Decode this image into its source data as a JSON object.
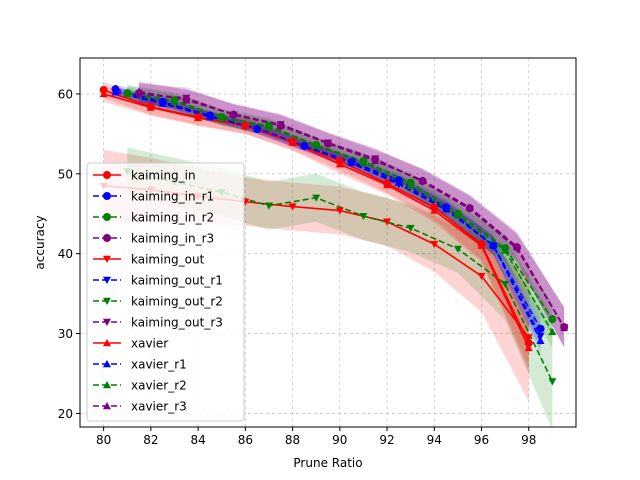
{
  "chart_data": {
    "type": "line",
    "title": "",
    "xlabel": "Prune Ratio",
    "ylabel": "accuracy",
    "xlim": [
      79,
      100
    ],
    "ylim": [
      18.3,
      64.5
    ],
    "xticks": [
      80,
      82,
      84,
      86,
      88,
      90,
      92,
      94,
      96,
      98
    ],
    "yticks": [
      20,
      30,
      40,
      50,
      60
    ],
    "grid": true,
    "legend": "left",
    "series": [
      {
        "name": "kaiming_in",
        "color": "#ff0000",
        "dash": "solid",
        "marker": "circle",
        "x": [
          80,
          82,
          84,
          86,
          88,
          90,
          92,
          94,
          96,
          98
        ],
        "y": [
          60.5,
          58.4,
          57.1,
          56.0,
          54.0,
          51.6,
          48.8,
          45.8,
          41.2,
          28.8
        ],
        "band": [
          1.0,
          1.0,
          1.0,
          1.0,
          1.0,
          1.2,
          1.2,
          1.5,
          2.0,
          3.0
        ]
      },
      {
        "name": "kaiming_in_r1",
        "color": "#0000ff",
        "dash": "dashed",
        "marker": "circle",
        "x": [
          80.5,
          82.5,
          84.5,
          86.5,
          88.5,
          90.5,
          92.5,
          94.5,
          96.5,
          98.5
        ],
        "y": [
          60.6,
          59.0,
          57.3,
          55.6,
          53.5,
          51.5,
          49.2,
          45.8,
          41.0,
          30.6
        ],
        "band": [
          0.6,
          0.6,
          0.6,
          0.6,
          0.6,
          0.7,
          0.8,
          1.0,
          1.2,
          1.5
        ]
      },
      {
        "name": "kaiming_in_r2",
        "color": "#008000",
        "dash": "dashed",
        "marker": "circle",
        "x": [
          81,
          83,
          85,
          87,
          89,
          91,
          93,
          95,
          97,
          99
        ],
        "y": [
          60.1,
          59.2,
          57.1,
          56.0,
          53.6,
          51.6,
          48.9,
          45.0,
          40.7,
          31.8
        ],
        "band": [
          1.0,
          1.0,
          1.0,
          1.0,
          1.0,
          1.0,
          1.2,
          1.4,
          1.6,
          2.0
        ]
      },
      {
        "name": "kaiming_in_r3",
        "color": "#800080",
        "dash": "dashed",
        "marker": "circle",
        "x": [
          81.5,
          83.5,
          85.5,
          87.5,
          89.5,
          91.5,
          93.5,
          95.5,
          97.5,
          99.5
        ],
        "y": [
          60.1,
          59.3,
          57.4,
          56.0,
          53.8,
          51.8,
          49.1,
          45.7,
          40.8,
          30.8
        ],
        "band": [
          1.3,
          1.3,
          1.3,
          1.3,
          1.3,
          1.3,
          1.5,
          1.6,
          1.8,
          2.5
        ]
      },
      {
        "name": "kaiming_out",
        "color": "#ff0000",
        "dash": "solid",
        "marker": "triangle-down",
        "x": [
          80,
          82,
          84,
          86,
          88,
          90,
          92,
          94,
          96,
          98
        ],
        "y": [
          48.5,
          48.0,
          47.2,
          46.5,
          45.9,
          45.4,
          44.0,
          41.2,
          37.2,
          29.5
        ],
        "band": [
          4.5,
          4.0,
          3.5,
          3.0,
          3.0,
          3.0,
          3.0,
          3.5,
          4.5,
          8.0
        ]
      },
      {
        "name": "kaiming_out_r1",
        "color": "#0000ff",
        "dash": "dashed",
        "marker": "triangle-down",
        "x": [
          80.5,
          82.5,
          84.5,
          86.5,
          88.5,
          90.5,
          92.5,
          94.5,
          96.5,
          98.5
        ],
        "y": [
          60.3,
          58.9,
          57.2,
          55.6,
          53.4,
          51.3,
          48.7,
          45.5,
          41.0,
          29.7
        ],
        "band": [
          0.6,
          0.6,
          0.6,
          0.6,
          0.6,
          0.7,
          0.8,
          1.0,
          1.2,
          1.5
        ]
      },
      {
        "name": "kaiming_out_r2",
        "color": "#008000",
        "dash": "dashed",
        "marker": "triangle-down",
        "x": [
          81,
          83,
          85,
          87,
          89,
          91,
          93,
          95,
          97,
          99
        ],
        "y": [
          50.3,
          49.0,
          47.7,
          46.0,
          47.0,
          44.7,
          43.2,
          40.6,
          36.2,
          24.0
        ],
        "band": [
          3.0,
          3.0,
          3.0,
          3.0,
          3.0,
          3.0,
          3.0,
          3.0,
          4.5,
          6.0
        ]
      },
      {
        "name": "kaiming_out_r3",
        "color": "#800080",
        "dash": "dashed",
        "marker": "triangle-down",
        "x": [
          81.5,
          83.5,
          85.5,
          87.5,
          89.5,
          91.5,
          93.5,
          95.5,
          97.5,
          99.5
        ],
        "y": [
          60.0,
          59.5,
          57.4,
          56.2,
          53.9,
          51.9,
          49.0,
          45.6,
          40.6,
          30.8
        ],
        "band": [
          1.3,
          1.3,
          1.3,
          1.3,
          1.3,
          1.3,
          1.5,
          1.6,
          1.8,
          2.5
        ]
      },
      {
        "name": "xavier",
        "color": "#ff0000",
        "dash": "solid",
        "marker": "triangle-up",
        "x": [
          80,
          82,
          84,
          86,
          88,
          90,
          92,
          94,
          96,
          98
        ],
        "y": [
          60.0,
          58.3,
          57.0,
          56.0,
          53.9,
          51.2,
          48.6,
          45.4,
          41.0,
          28.2
        ],
        "band": [
          1.0,
          1.0,
          1.0,
          1.0,
          1.0,
          1.2,
          1.2,
          1.5,
          2.0,
          3.0
        ]
      },
      {
        "name": "xavier_r1",
        "color": "#0000ff",
        "dash": "dashed",
        "marker": "triangle-up",
        "x": [
          80.5,
          82.5,
          84.5,
          86.5,
          88.5,
          90.5,
          92.5,
          94.5,
          96.5,
          98.5
        ],
        "y": [
          60.2,
          58.8,
          57.1,
          55.7,
          53.5,
          51.4,
          48.9,
          45.6,
          41.1,
          29.1
        ],
        "band": [
          0.6,
          0.6,
          0.6,
          0.6,
          0.6,
          0.7,
          0.8,
          1.0,
          1.2,
          1.5
        ]
      },
      {
        "name": "xavier_r2",
        "color": "#008000",
        "dash": "dashed",
        "marker": "triangle-up",
        "x": [
          81,
          83,
          85,
          87,
          89,
          91,
          93,
          95,
          97,
          99
        ],
        "y": [
          60.0,
          59.0,
          57.0,
          55.8,
          53.5,
          51.4,
          48.5,
          44.8,
          40.4,
          30.2
        ],
        "band": [
          1.0,
          1.0,
          1.0,
          1.0,
          1.0,
          1.0,
          1.2,
          1.4,
          1.6,
          2.0
        ]
      },
      {
        "name": "xavier_r3",
        "color": "#800080",
        "dash": "dashed",
        "marker": "triangle-up",
        "x": [
          81.5,
          83.5,
          85.5,
          87.5,
          89.5,
          91.5,
          93.5,
          95.5,
          97.5,
          99.5
        ],
        "y": [
          60.3,
          59.2,
          57.5,
          56.1,
          53.8,
          51.6,
          49.2,
          45.8,
          40.9,
          30.7
        ],
        "band": [
          1.3,
          1.3,
          1.3,
          1.3,
          1.3,
          1.3,
          1.5,
          1.6,
          1.8,
          2.5
        ]
      }
    ]
  }
}
